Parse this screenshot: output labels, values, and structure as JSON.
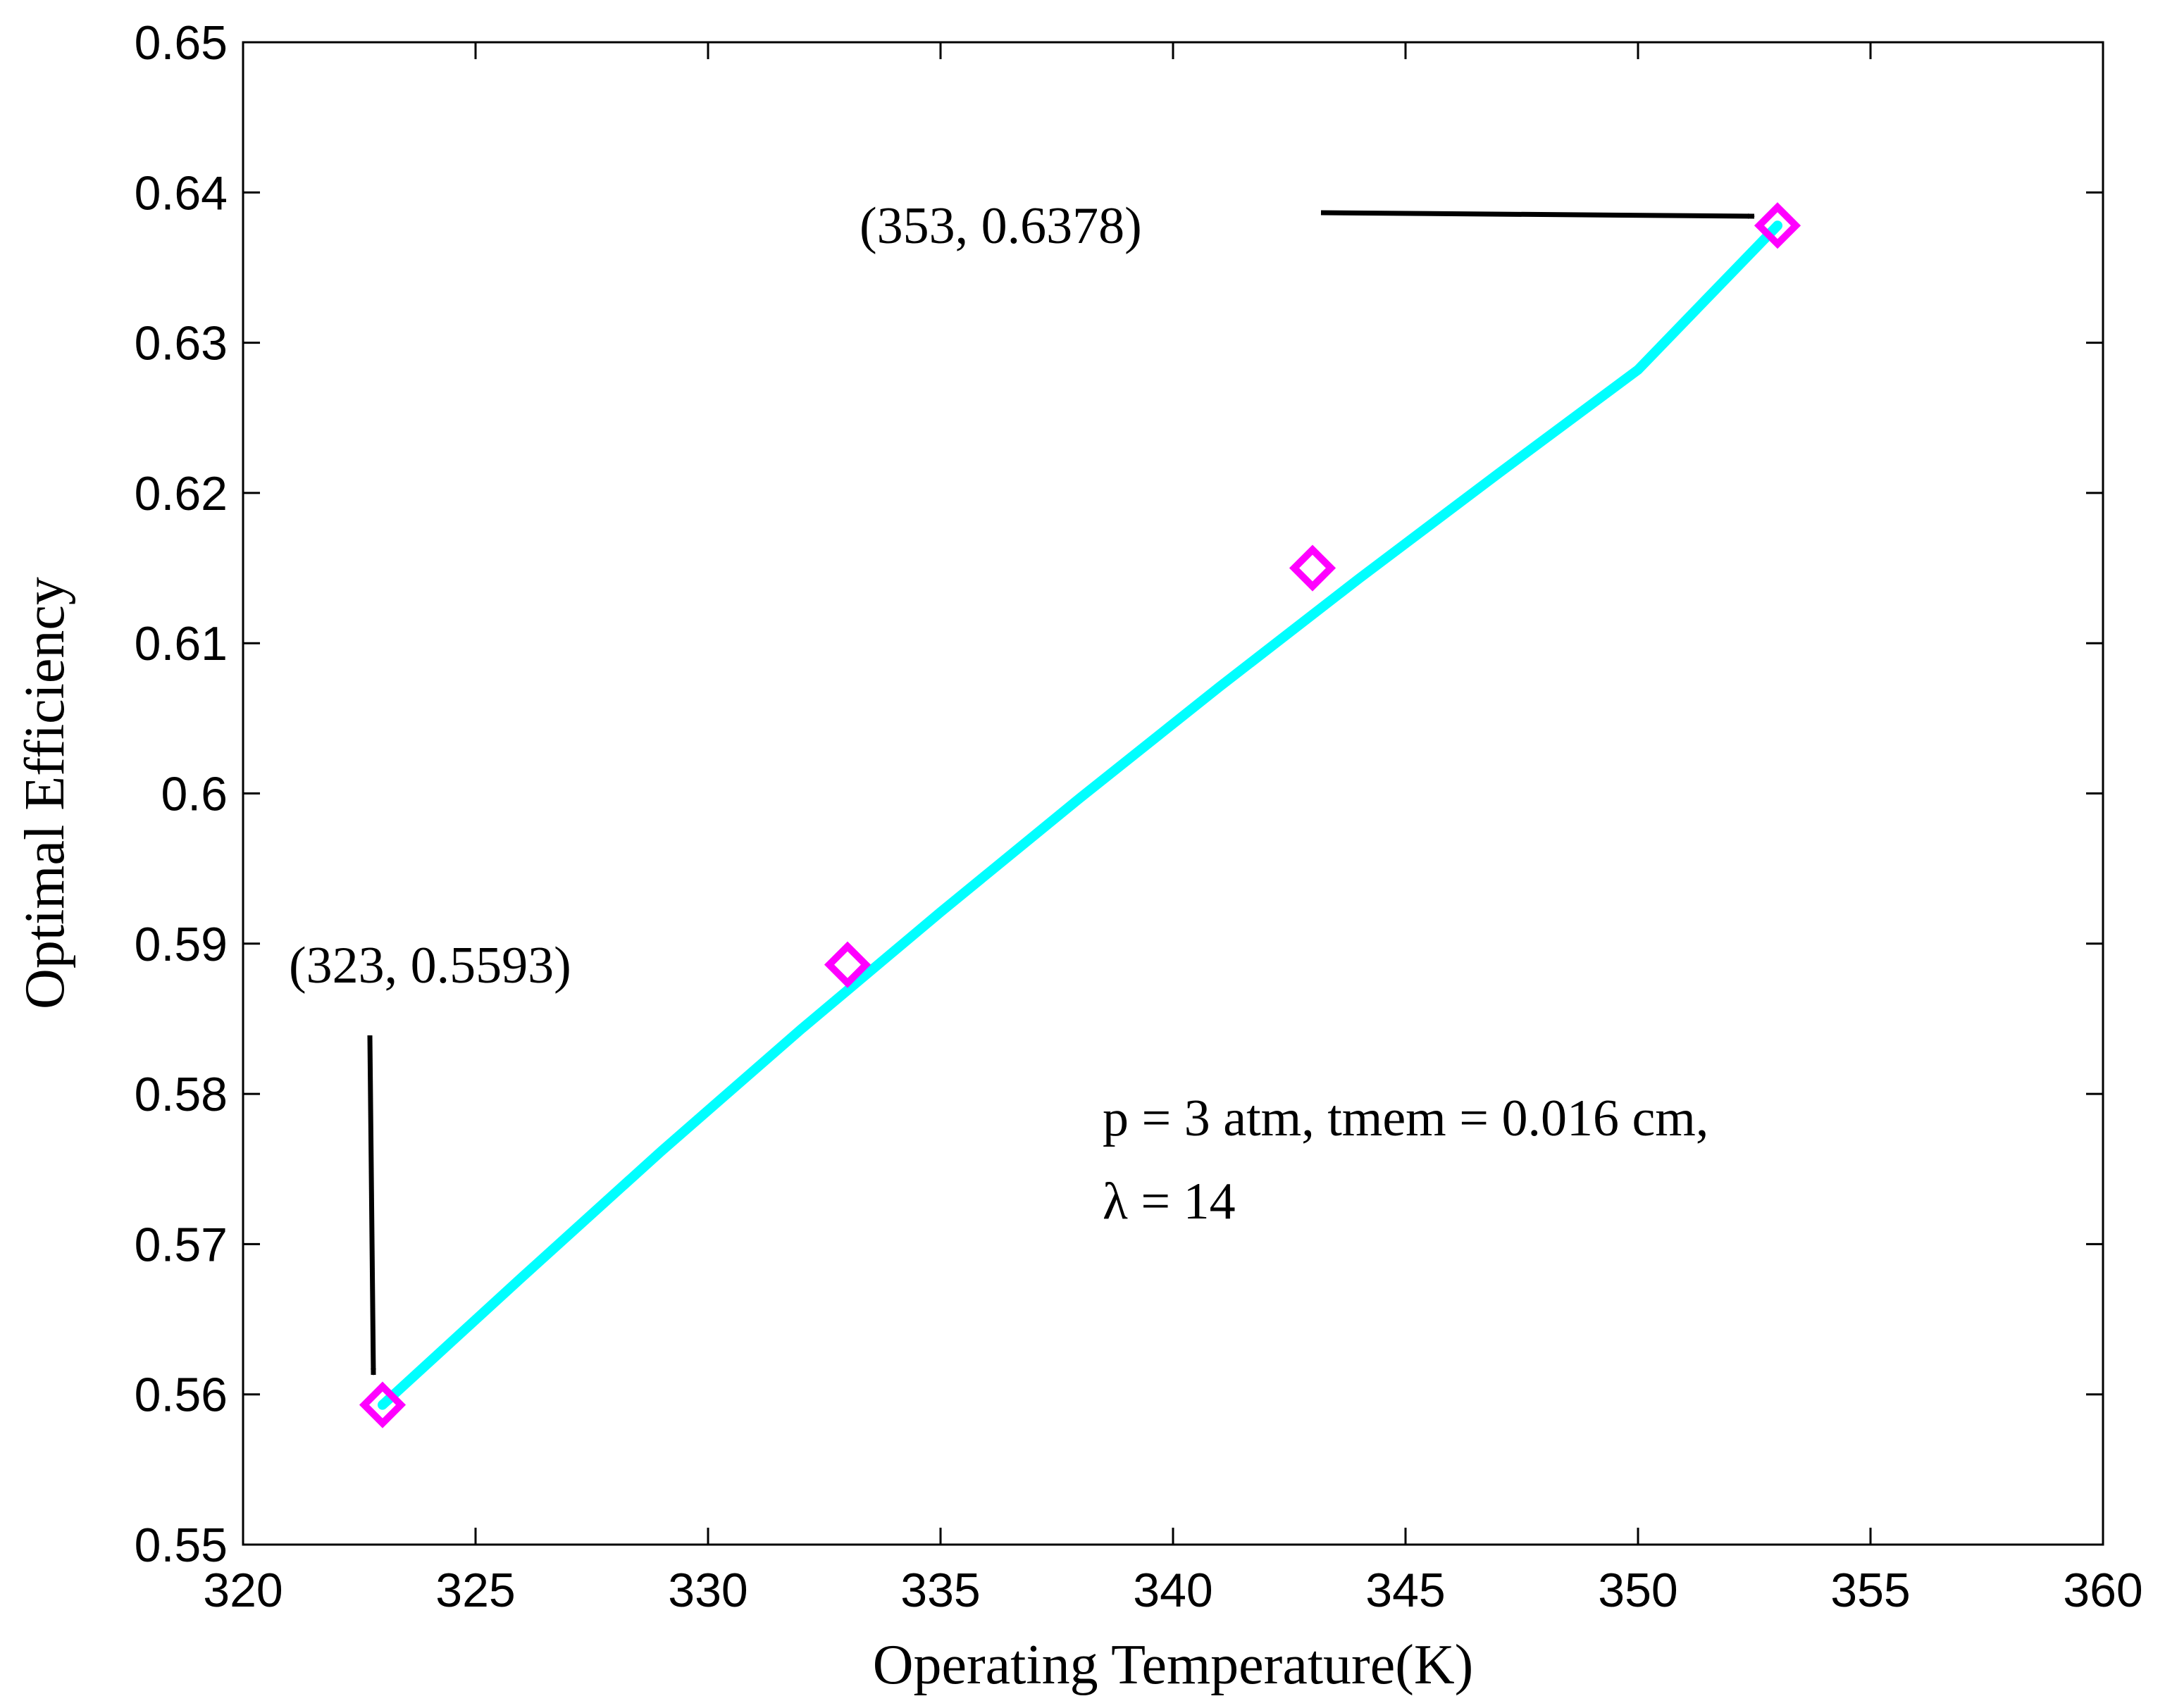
{
  "chart_data": {
    "type": "line",
    "title": "",
    "xlabel": "Operating Temperature(K)",
    "ylabel": "Optimal Efficiency",
    "xlim": [
      320,
      360
    ],
    "ylim": [
      0.55,
      0.65
    ],
    "xticks": [
      320,
      325,
      330,
      335,
      340,
      345,
      350,
      355,
      360
    ],
    "xtick_labels": [
      "320",
      "325",
      "330",
      "335",
      "340",
      "345",
      "350",
      "355",
      "360"
    ],
    "yticks": [
      0.55,
      0.56,
      0.57,
      0.58,
      0.59,
      0.6,
      0.61,
      0.62,
      0.63,
      0.64,
      0.65
    ],
    "ytick_labels": [
      "0.55",
      "0.56",
      "0.57",
      "0.58",
      "0.59",
      "0.6",
      "0.61",
      "0.62",
      "0.63",
      "0.64",
      "0.65"
    ],
    "grid": false,
    "series": [
      {
        "name": "efficiency",
        "color": "#00ffff",
        "x": [
          323,
          326,
          329,
          332,
          335,
          338,
          341,
          344,
          347,
          350,
          353
        ],
        "y": [
          0.5593,
          0.5678,
          0.5762,
          0.5843,
          0.5921,
          0.5997,
          0.6071,
          0.6143,
          0.6213,
          0.6282,
          0.6378
        ]
      }
    ],
    "markers": {
      "shape": "diamond",
      "color": "#ff00ff",
      "x": [
        323,
        333,
        343,
        353
      ],
      "y": [
        0.5593,
        0.5886,
        0.615,
        0.6378
      ]
    },
    "annotations": {
      "point_high": "(353, 0.6378)",
      "point_low": "(323, 0.5593)",
      "params_line1": "p = 3 atm, tmem = 0.016 cm,",
      "params_line2": "λ = 14"
    }
  }
}
